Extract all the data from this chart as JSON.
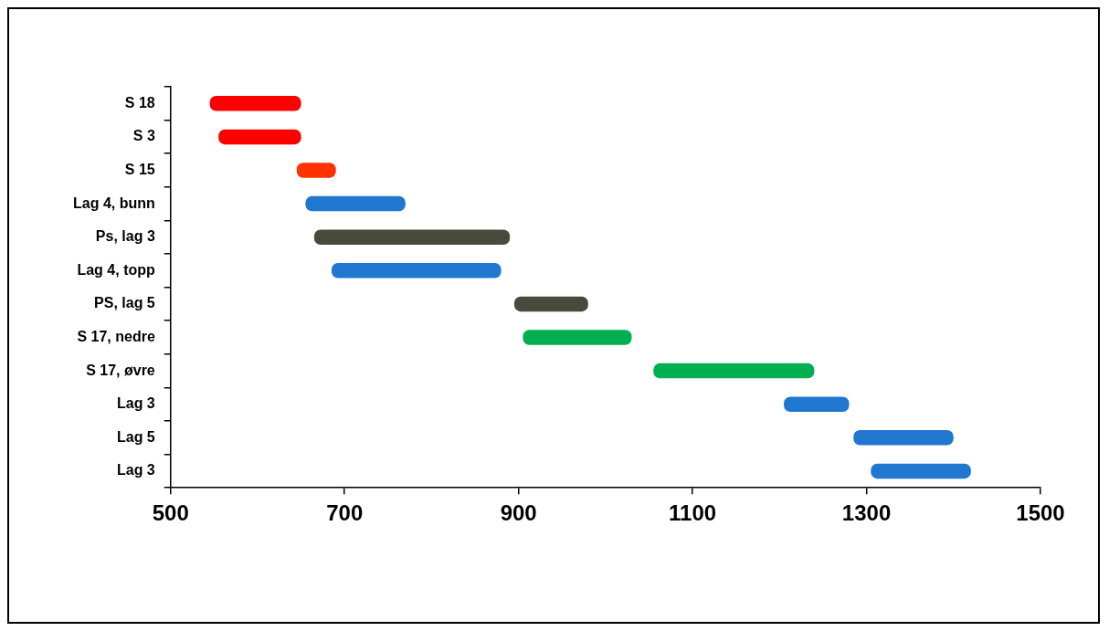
{
  "chart_data": {
    "type": "bar",
    "orientation": "horizontal",
    "categories": [
      "S 18",
      "S 3",
      "S 15",
      "Lag 4, bunn",
      "Ps, lag 3",
      "Lag 4, topp",
      "PS, lag 5",
      "S 17, nedre",
      "S 17, øvre",
      "Lag 3",
      "Lag 5",
      "Lag 3"
    ],
    "base": [
      545,
      555,
      645,
      655,
      665,
      685,
      895,
      905,
      1055,
      1205,
      1285,
      1305
    ],
    "values": [
      105,
      95,
      45,
      115,
      225,
      195,
      85,
      125,
      185,
      75,
      115,
      115
    ],
    "colors": [
      "#ff0000",
      "#ff0000",
      "#ff3300",
      "#1f77d0",
      "#4a4a3c",
      "#1f77d0",
      "#4a4a3c",
      "#00b050",
      "#00b050",
      "#1f77d0",
      "#1f77d0",
      "#1f77d0"
    ],
    "xlim": [
      500,
      1500
    ],
    "xticks": [
      500,
      700,
      900,
      1100,
      1300,
      1500
    ],
    "grid": false,
    "legend": false
  }
}
